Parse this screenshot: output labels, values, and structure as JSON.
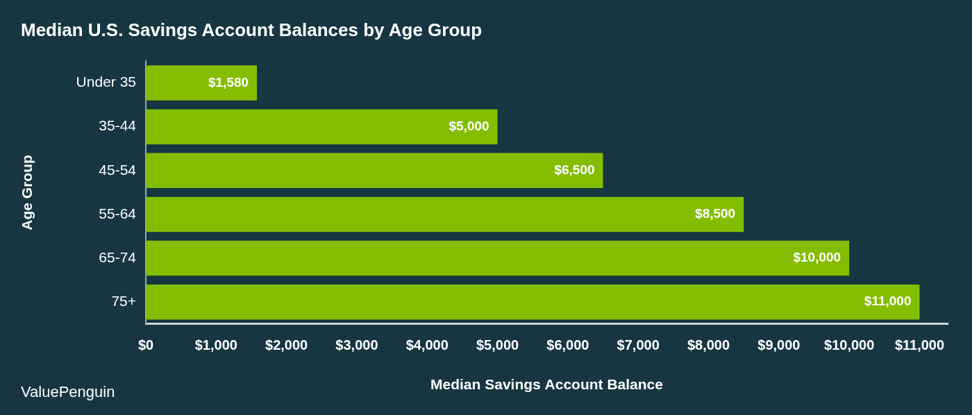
{
  "chart_data": {
    "type": "bar",
    "orientation": "horizontal",
    "title": "Median U.S. Savings Account Balances by Age Group",
    "x_label": "Median Savings Account Balance",
    "y_label": "Age Group",
    "categories": [
      "Under 35",
      "35-44",
      "45-54",
      "55-64",
      "65-74",
      "75+"
    ],
    "values": [
      1580,
      5000,
      6500,
      8500,
      10000,
      11000
    ],
    "value_labels": [
      "$1,580",
      "$5,000",
      "$6,500",
      "$8,500",
      "$10,000",
      "$11,000"
    ],
    "data_labels": true,
    "color": "#84bd00",
    "xlim": [
      0,
      11400
    ],
    "xticks": [
      {
        "value": 0,
        "label": "$0"
      },
      {
        "value": 1000,
        "label": "$1,000"
      },
      {
        "value": 2000,
        "label": "$2,000"
      },
      {
        "value": 3000,
        "label": "$3,000"
      },
      {
        "value": 4000,
        "label": "$4,000"
      },
      {
        "value": 5000,
        "label": "$5,000"
      },
      {
        "value": 6000,
        "label": "$6,000"
      },
      {
        "value": 7000,
        "label": "$7,000"
      },
      {
        "value": 8000,
        "label": "$8,000"
      },
      {
        "value": 9000,
        "label": "$9,000"
      },
      {
        "value": 10000,
        "label": "$10,000"
      },
      {
        "value": 11000,
        "label": "$11,000"
      }
    ],
    "grid": false,
    "annotations": [
      "ValuePenguin"
    ]
  }
}
